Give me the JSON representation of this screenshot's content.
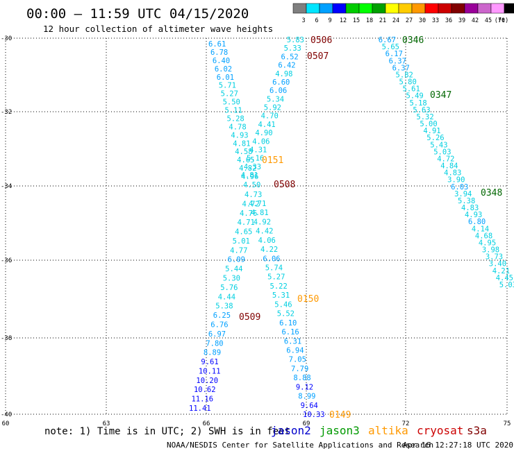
{
  "header": {
    "title": "00:00 – 11:59 UTC 04/15/2020",
    "subtitle": "12 hour collection of altimeter wave heights"
  },
  "colorbar": {
    "colors": [
      "#7f7f7f",
      "#00e5ff",
      "#00a0ff",
      "#0000ff",
      "#00cc00",
      "#00ff00",
      "#00a000",
      "#ffff00",
      "#ffcc00",
      "#ff9900",
      "#ff0000",
      "#cc0000",
      "#800000",
      "#990099",
      "#cc66cc",
      "#ff99ff",
      "#000000"
    ],
    "labels": [
      "3",
      "6",
      "9",
      "12",
      "15",
      "18",
      "21",
      "24",
      "27",
      "30",
      "33",
      "36",
      "39",
      "42",
      "45",
      "70"
    ],
    "unit": "(ft)"
  },
  "axes": {
    "lat_ticks": [
      "-30",
      "-32",
      "-34",
      "-36",
      "-38",
      "-40"
    ],
    "lon_ticks": [
      "60",
      "63",
      "66",
      "69",
      "72",
      "75"
    ]
  },
  "passes": [
    {
      "id": "0506",
      "sat": "cryosat",
      "color": "#800000"
    },
    {
      "id": "0507",
      "sat": "cryosat",
      "color": "#800000"
    },
    {
      "id": "0508",
      "sat": "cryosat",
      "color": "#800000"
    },
    {
      "id": "0509",
      "sat": "cryosat",
      "color": "#800000"
    },
    {
      "id": "0346",
      "sat": "jason3",
      "color": "#006600"
    },
    {
      "id": "0347",
      "sat": "jason3",
      "color": "#006600"
    },
    {
      "id": "0348",
      "sat": "jason3",
      "color": "#006600"
    },
    {
      "id": "0151",
      "sat": "altika",
      "color": "#ff9900"
    },
    {
      "id": "0150",
      "sat": "altika",
      "color": "#ff9900"
    },
    {
      "id": "0149",
      "sat": "altika",
      "color": "#ff9900"
    }
  ],
  "tracks": {
    "a": [
      "6.61",
      "6.78",
      "6.40",
      "6.02",
      "6.01",
      "5.71",
      "5.27",
      "5.50",
      "5.11",
      "5.28",
      "4.78",
      "4.93",
      "4.81",
      "4.58",
      "4.65",
      "4.82",
      "4.96",
      "4.50",
      "4.73",
      "4.71",
      "4.72",
      "4.81",
      "4.76",
      "4.92",
      "4.71",
      "4.42",
      "4.65",
      "4.06",
      "5.01",
      "4.22",
      "4.77",
      "6.06",
      "6.09",
      "5.74",
      "5.44",
      "5.27",
      "5.30",
      "5.22",
      "5.76",
      "5.31",
      "4.44",
      "5.46",
      "5.38",
      "5.52",
      "6.25",
      "6.10",
      "6.76",
      "6.16",
      "6.97",
      "6.31",
      "7.80",
      "6.94",
      "8.89",
      "7.05",
      "9.61",
      "7.79",
      "10.11",
      "8.88",
      "10.20",
      "9.12",
      "10.62",
      "8.99",
      "11.16",
      "9.64",
      "11.41",
      "10.33"
    ],
    "b": [
      "5.83",
      "5.33",
      "6.52",
      "6.42",
      "4.98",
      "6.60",
      "6.06",
      "5.34",
      "5.92",
      "4.70",
      "4.41",
      "4.90",
      "4.06",
      "4.31",
      "5.16",
      "4.33",
      "4.81"
    ],
    "c": [
      "6.67",
      "5.65",
      "6.17",
      "6.37",
      "6.37",
      "5.82",
      "5.80",
      "5.61",
      "5.49",
      "5.18",
      "5.63",
      "5.32",
      "5.00",
      "4.91",
      "5.26",
      "5.43",
      "5.03",
      "4.72",
      "4.84",
      "4.83",
      "3.90",
      "6.03",
      "3.94",
      "5.38",
      "4.83",
      "4.93",
      "6.80",
      "4.14",
      "4.68",
      "4.95",
      "3.98",
      "3.73",
      "3.40",
      "4.21",
      "4.45",
      "5.03"
    ]
  },
  "legend": {
    "note": "note: 1) Time is in UTC; 2) SWH is in feet",
    "sats": [
      {
        "name": "jason2",
        "color": "#0000cc"
      },
      {
        "name": "jason3",
        "color": "#009900"
      },
      {
        "name": "altika",
        "color": "#ff9900"
      },
      {
        "name": "cryosat",
        "color": "#cc0000"
      },
      {
        "name": "s3a",
        "color": "#800000"
      }
    ]
  },
  "footer": {
    "credit": "NOAA/NESDIS Center for Satellite Applications and Research",
    "timestamp": "Apr 16 12:27:18 UTC 2020"
  }
}
